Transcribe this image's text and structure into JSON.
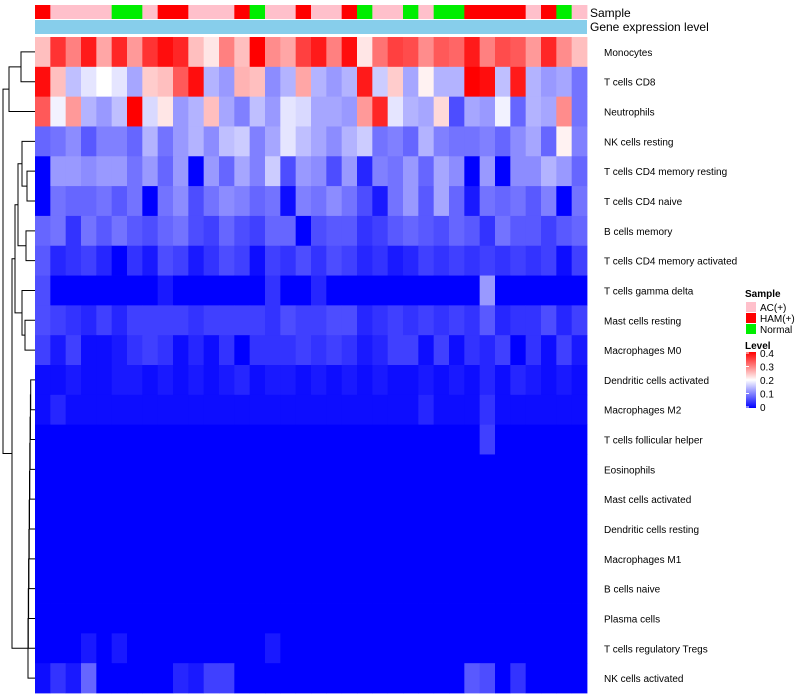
{
  "chart_data": {
    "type": "heatmap",
    "annotation_tracks": [
      "Sample",
      "Gene expression level"
    ],
    "rows": [
      "Monocytes",
      "T cells CD8",
      "Neutrophils",
      "NK cells resting",
      "T cells CD4 memory resting",
      "T cells CD4 naive",
      "B cells memory",
      "T cells CD4 memory activated",
      "T cells gamma delta",
      "Mast cells resting",
      "Macrophages M0",
      "Dendritic cells activated",
      "Macrophages M2",
      "T cells follicular helper",
      "Eosinophils",
      "Mast cells activated",
      "Dendritic cells resting",
      "Macrophages M1",
      "B cells naive",
      "Plasma cells",
      "T cells regulatory  Tregs",
      "NK cells activated"
    ],
    "sample_groups": [
      "HAM(+)",
      "AC(+)",
      "AC(+)",
      "AC(+)",
      "AC(+)",
      "Normal",
      "Normal",
      "AC(+)",
      "HAM(+)",
      "HAM(+)",
      "AC(+)",
      "AC(+)",
      "AC(+)",
      "HAM(+)",
      "Normal",
      "AC(+)",
      "AC(+)",
      "HAM(+)",
      "AC(+)",
      "AC(+)",
      "HAM(+)",
      "Normal",
      "AC(+)",
      "AC(+)",
      "Normal",
      "AC(+)",
      "Normal",
      "Normal",
      "HAM(+)",
      "HAM(+)",
      "HAM(+)",
      "HAM(+)",
      "AC(+)",
      "HAM(+)",
      "Normal",
      "AC(+)"
    ],
    "values": [
      [
        0.25,
        0.36,
        0.3,
        0.38,
        0.27,
        0.37,
        0.28,
        0.36,
        0.39,
        0.37,
        0.25,
        0.22,
        0.3,
        0.25,
        0.4,
        0.29,
        0.27,
        0.35,
        0.38,
        0.3,
        0.39,
        0.22,
        0.31,
        0.35,
        0.34,
        0.29,
        0.33,
        0.32,
        0.38,
        0.3,
        0.34,
        0.33,
        0.28,
        0.37,
        0.29,
        0.25
      ],
      [
        0.39,
        0.25,
        0.15,
        0.18,
        0.2,
        0.18,
        0.13,
        0.24,
        0.25,
        0.33,
        0.39,
        0.14,
        0.12,
        0.26,
        0.25,
        0.11,
        0.14,
        0.27,
        0.14,
        0.12,
        0.14,
        0.38,
        0.16,
        0.24,
        0.13,
        0.21,
        0.14,
        0.14,
        0.4,
        0.39,
        0.15,
        0.38,
        0.14,
        0.12,
        0.13,
        0.09
      ],
      [
        0.33,
        0.19,
        0.28,
        0.14,
        0.12,
        0.15,
        0.4,
        0.17,
        0.22,
        0.12,
        0.14,
        0.25,
        0.13,
        0.1,
        0.15,
        0.12,
        0.18,
        0.17,
        0.13,
        0.13,
        0.12,
        0.28,
        0.37,
        0.18,
        0.14,
        0.13,
        0.23,
        0.06,
        0.13,
        0.12,
        0.19,
        0.08,
        0.14,
        0.13,
        0.29,
        0.09
      ],
      [
        0.08,
        0.09,
        0.11,
        0.07,
        0.1,
        0.1,
        0.08,
        0.14,
        0.09,
        0.12,
        0.14,
        0.11,
        0.15,
        0.16,
        0.1,
        0.13,
        0.18,
        0.15,
        0.13,
        0.11,
        0.14,
        0.16,
        0.09,
        0.1,
        0.08,
        0.14,
        0.1,
        0.09,
        0.09,
        0.1,
        0.08,
        0.11,
        0.13,
        0.08,
        0.21,
        0.1
      ],
      [
        0.0,
        0.12,
        0.12,
        0.11,
        0.12,
        0.12,
        0.09,
        0.12,
        0.08,
        0.12,
        0.0,
        0.12,
        0.08,
        0.13,
        0.1,
        0.16,
        0.06,
        0.12,
        0.11,
        0.06,
        0.12,
        0.03,
        0.1,
        0.09,
        0.12,
        0.08,
        0.13,
        0.11,
        0.0,
        0.12,
        0.0,
        0.11,
        0.11,
        0.14,
        0.12,
        0.08
      ],
      [
        0.0,
        0.09,
        0.08,
        0.08,
        0.09,
        0.07,
        0.09,
        0.0,
        0.09,
        0.11,
        0.06,
        0.09,
        0.11,
        0.1,
        0.08,
        0.09,
        0.01,
        0.1,
        0.09,
        0.11,
        0.09,
        0.06,
        0.02,
        0.09,
        0.12,
        0.07,
        0.13,
        0.08,
        0.02,
        0.09,
        0.08,
        0.09,
        0.07,
        0.1,
        0.0,
        0.09
      ],
      [
        0.08,
        0.09,
        0.04,
        0.09,
        0.07,
        0.09,
        0.07,
        0.06,
        0.08,
        0.09,
        0.06,
        0.05,
        0.08,
        0.06,
        0.05,
        0.08,
        0.08,
        0.0,
        0.06,
        0.07,
        0.07,
        0.04,
        0.05,
        0.07,
        0.08,
        0.07,
        0.06,
        0.08,
        0.07,
        0.04,
        0.09,
        0.07,
        0.07,
        0.05,
        0.07,
        0.08
      ],
      [
        0.07,
        0.03,
        0.04,
        0.05,
        0.03,
        0.0,
        0.04,
        0.02,
        0.06,
        0.05,
        0.02,
        0.04,
        0.06,
        0.05,
        0.01,
        0.05,
        0.04,
        0.06,
        0.04,
        0.06,
        0.05,
        0.03,
        0.04,
        0.02,
        0.03,
        0.05,
        0.04,
        0.05,
        0.04,
        0.05,
        0.04,
        0.05,
        0.04,
        0.05,
        0.01,
        0.05
      ],
      [
        0.06,
        0.0,
        0.0,
        0.0,
        0.0,
        0.0,
        0.0,
        0.0,
        0.02,
        0.0,
        0.0,
        0.0,
        0.0,
        0.0,
        0.0,
        0.04,
        0.0,
        0.0,
        0.03,
        0.0,
        0.0,
        0.0,
        0.0,
        0.0,
        0.0,
        0.0,
        0.0,
        0.0,
        0.0,
        0.12,
        0.0,
        0.0,
        0.0,
        0.0,
        0.0,
        0.0
      ],
      [
        0.06,
        0.05,
        0.04,
        0.03,
        0.05,
        0.03,
        0.05,
        0.05,
        0.05,
        0.05,
        0.04,
        0.05,
        0.05,
        0.05,
        0.05,
        0.04,
        0.06,
        0.05,
        0.05,
        0.06,
        0.06,
        0.03,
        0.04,
        0.05,
        0.04,
        0.05,
        0.04,
        0.05,
        0.04,
        0.07,
        0.03,
        0.04,
        0.04,
        0.06,
        0.03,
        0.05
      ],
      [
        0.05,
        0.02,
        0.05,
        0.01,
        0.01,
        0.02,
        0.04,
        0.05,
        0.04,
        0.01,
        0.03,
        0.01,
        0.04,
        0.0,
        0.04,
        0.04,
        0.04,
        0.05,
        0.04,
        0.05,
        0.04,
        0.02,
        0.03,
        0.05,
        0.05,
        0.01,
        0.05,
        0.01,
        0.04,
        0.03,
        0.05,
        0.0,
        0.04,
        0.01,
        0.05,
        0.02
      ],
      [
        0.01,
        0.01,
        0.02,
        0.01,
        0.01,
        0.02,
        0.02,
        0.01,
        0.02,
        0.01,
        0.02,
        0.01,
        0.02,
        0.03,
        0.01,
        0.02,
        0.02,
        0.01,
        0.02,
        0.01,
        0.02,
        0.01,
        0.02,
        0.01,
        0.01,
        0.02,
        0.01,
        0.02,
        0.01,
        0.03,
        0.01,
        0.03,
        0.02,
        0.01,
        0.02,
        0.01
      ],
      [
        0.01,
        0.03,
        0.01,
        0.01,
        0.01,
        0.01,
        0.01,
        0.01,
        0.01,
        0.01,
        0.01,
        0.01,
        0.01,
        0.01,
        0.01,
        0.01,
        0.01,
        0.01,
        0.01,
        0.01,
        0.01,
        0.01,
        0.01,
        0.01,
        0.01,
        0.03,
        0.01,
        0.01,
        0.01,
        0.04,
        0.01,
        0.01,
        0.01,
        0.01,
        0.01,
        0.01
      ],
      [
        0.0,
        0.0,
        0.0,
        0.0,
        0.0,
        0.0,
        0.0,
        0.0,
        0.0,
        0.0,
        0.0,
        0.0,
        0.0,
        0.0,
        0.0,
        0.0,
        0.0,
        0.0,
        0.0,
        0.0,
        0.0,
        0.0,
        0.0,
        0.0,
        0.0,
        0.0,
        0.0,
        0.0,
        0.0,
        0.05,
        0.0,
        0.0,
        0.0,
        0.0,
        0.0,
        0.0
      ],
      [
        0.0,
        0.0,
        0.0,
        0.0,
        0.0,
        0.0,
        0.0,
        0.0,
        0.0,
        0.0,
        0.0,
        0.0,
        0.0,
        0.0,
        0.0,
        0.0,
        0.0,
        0.0,
        0.0,
        0.0,
        0.0,
        0.0,
        0.0,
        0.0,
        0.0,
        0.0,
        0.0,
        0.0,
        0.0,
        0.0,
        0.0,
        0.0,
        0.0,
        0.0,
        0.0,
        0.0
      ],
      [
        0.0,
        0.0,
        0.0,
        0.0,
        0.0,
        0.0,
        0.0,
        0.0,
        0.0,
        0.0,
        0.0,
        0.0,
        0.0,
        0.0,
        0.0,
        0.0,
        0.0,
        0.0,
        0.0,
        0.0,
        0.0,
        0.0,
        0.0,
        0.0,
        0.0,
        0.0,
        0.0,
        0.0,
        0.0,
        0.0,
        0.0,
        0.0,
        0.0,
        0.0,
        0.0,
        0.0
      ],
      [
        0.0,
        0.0,
        0.0,
        0.0,
        0.0,
        0.0,
        0.0,
        0.0,
        0.0,
        0.0,
        0.0,
        0.0,
        0.0,
        0.0,
        0.0,
        0.0,
        0.0,
        0.0,
        0.0,
        0.0,
        0.0,
        0.0,
        0.0,
        0.0,
        0.0,
        0.0,
        0.0,
        0.0,
        0.0,
        0.0,
        0.0,
        0.0,
        0.0,
        0.0,
        0.0,
        0.0
      ],
      [
        0.0,
        0.0,
        0.0,
        0.0,
        0.0,
        0.0,
        0.0,
        0.0,
        0.0,
        0.0,
        0.0,
        0.0,
        0.0,
        0.0,
        0.0,
        0.0,
        0.0,
        0.0,
        0.0,
        0.0,
        0.0,
        0.0,
        0.0,
        0.0,
        0.0,
        0.0,
        0.0,
        0.0,
        0.0,
        0.0,
        0.0,
        0.0,
        0.0,
        0.0,
        0.0,
        0.0
      ],
      [
        0.0,
        0.0,
        0.0,
        0.0,
        0.0,
        0.0,
        0.0,
        0.0,
        0.0,
        0.0,
        0.0,
        0.0,
        0.0,
        0.0,
        0.0,
        0.0,
        0.0,
        0.0,
        0.0,
        0.0,
        0.0,
        0.0,
        0.0,
        0.0,
        0.0,
        0.0,
        0.0,
        0.0,
        0.0,
        0.0,
        0.0,
        0.0,
        0.0,
        0.0,
        0.0,
        0.0
      ],
      [
        0.0,
        0.0,
        0.0,
        0.0,
        0.0,
        0.0,
        0.0,
        0.0,
        0.0,
        0.0,
        0.0,
        0.0,
        0.0,
        0.0,
        0.0,
        0.0,
        0.0,
        0.0,
        0.0,
        0.0,
        0.0,
        0.0,
        0.0,
        0.0,
        0.0,
        0.0,
        0.0,
        0.0,
        0.0,
        0.0,
        0.0,
        0.0,
        0.0,
        0.0,
        0.0,
        0.0
      ],
      [
        0.0,
        0.0,
        0.0,
        0.02,
        0.0,
        0.02,
        0.0,
        0.0,
        0.0,
        0.0,
        0.0,
        0.0,
        0.0,
        0.0,
        0.0,
        0.02,
        0.0,
        0.0,
        0.0,
        0.0,
        0.0,
        0.0,
        0.0,
        0.0,
        0.0,
        0.0,
        0.0,
        0.0,
        0.0,
        0.0,
        0.0,
        0.0,
        0.0,
        0.0,
        0.0,
        0.0
      ],
      [
        0.01,
        0.04,
        0.02,
        0.08,
        0.0,
        0.0,
        0.0,
        0.0,
        0.0,
        0.03,
        0.02,
        0.05,
        0.05,
        0.0,
        0.0,
        0.0,
        0.0,
        0.0,
        0.0,
        0.0,
        0.0,
        0.0,
        0.0,
        0.0,
        0.0,
        0.0,
        0.0,
        0.0,
        0.07,
        0.06,
        0.0,
        0.04,
        0.0,
        0.0,
        0.0,
        0.0
      ]
    ],
    "legend": {
      "sample_title": "Sample",
      "sample_entries": [
        {
          "label": "AC(+)",
          "color": "#ffc0cb"
        },
        {
          "label": "HAM(+)",
          "color": "#ff0000"
        },
        {
          "label": "Normal",
          "color": "#00ee00"
        }
      ],
      "level_title": "Level",
      "level_ticks": [
        "0.4",
        "0.3",
        "0.2",
        "0.1",
        "0"
      ],
      "level_min": 0,
      "level_max": 0.4
    },
    "colors": {
      "low": "#0000ff",
      "mid": "#ffffff",
      "high": "#ff0000",
      "expression_bar": "#87ceeb"
    }
  }
}
